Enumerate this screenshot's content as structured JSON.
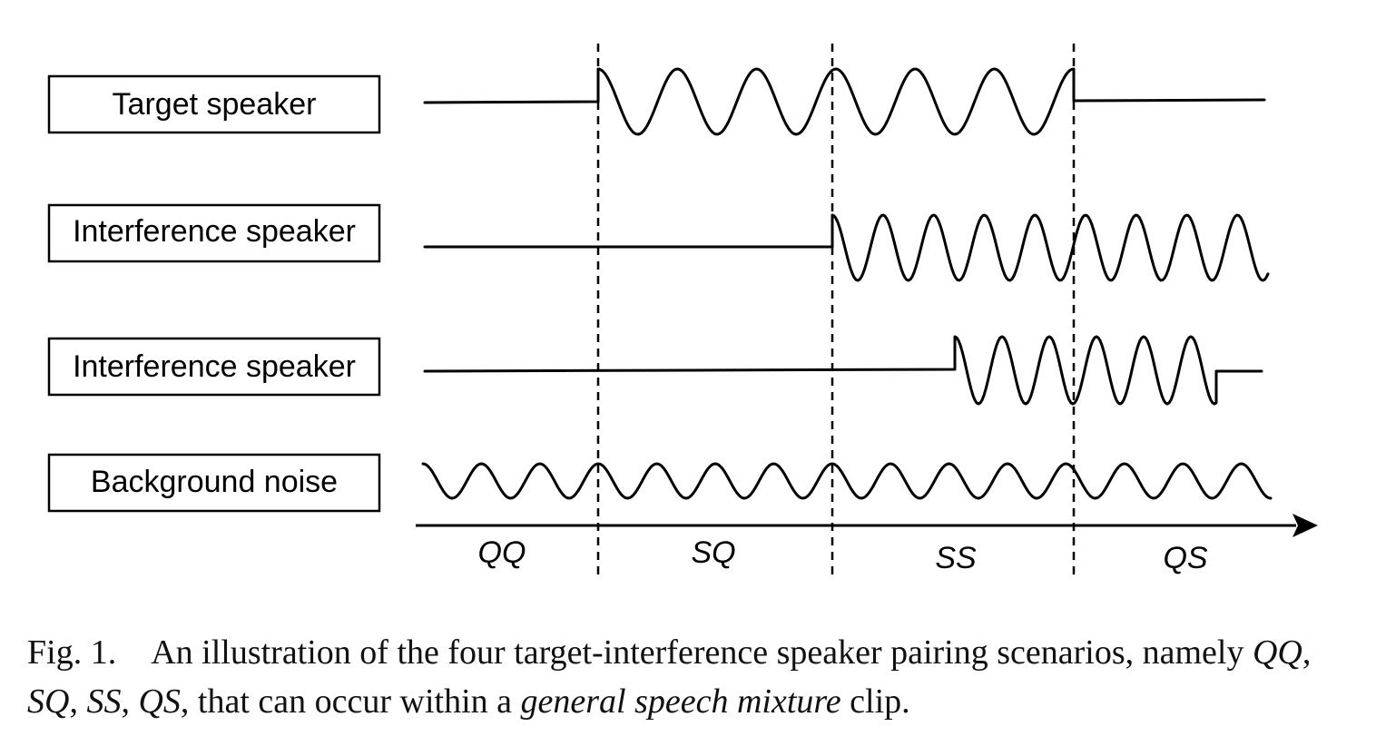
{
  "rows": [
    {
      "label": "Target speaker"
    },
    {
      "label": "Interference speaker"
    },
    {
      "label": "Interference speaker"
    },
    {
      "label": "Background noise"
    }
  ],
  "segments": [
    "QQ",
    "SQ",
    "SS",
    "QS"
  ],
  "caption": {
    "fig_num": "Fig. 1.",
    "text_1": "An illustration of the four target-interference speaker pairing scenarios, namely ",
    "m1": "QQ",
    "sep1": ", ",
    "m2": "SQ",
    "sep2": ", ",
    "m3": "SS",
    "sep3": ", ",
    "m4": "QS",
    "text_2": ", that can occur within a ",
    "em": "general speech mixture",
    "text_3": " clip."
  }
}
